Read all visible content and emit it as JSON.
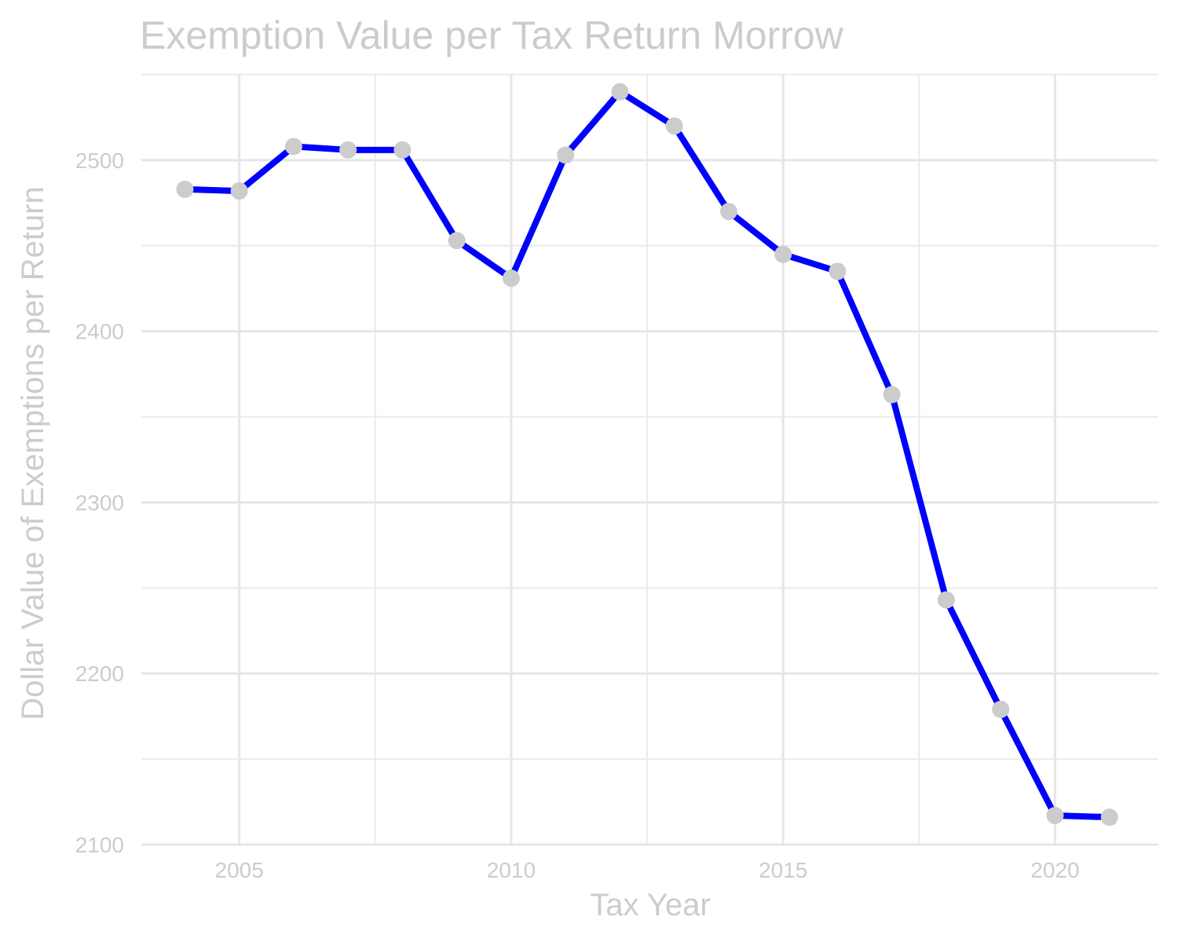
{
  "chart_data": {
    "type": "line",
    "title": "Exemption Value per Tax Return Morrow",
    "xlabel": "Tax Year",
    "ylabel": "Dollar Value of Exemptions per Return",
    "x": [
      2004,
      2005,
      2006,
      2007,
      2008,
      2009,
      2010,
      2011,
      2012,
      2013,
      2014,
      2015,
      2016,
      2017,
      2018,
      2019,
      2020,
      2021
    ],
    "series": [
      {
        "values": [
          2483,
          2482,
          2508,
          2506,
          2506,
          2453,
          2431,
          2503,
          2540,
          2520,
          2470,
          2445,
          2435,
          2363,
          2243,
          2179,
          2117,
          2116
        ]
      }
    ],
    "xlim": [
      2003.2,
      2021.9
    ],
    "ylim": [
      2100,
      2550
    ],
    "x_ticks": [
      "2005",
      "2010",
      "2015",
      "2020"
    ],
    "y_ticks": [
      "2100",
      "2200",
      "2300",
      "2400",
      "2500"
    ],
    "grid": true,
    "legend": "none",
    "line_color": "#0000ff",
    "point_color": "#cccccc",
    "text_color": "#cccccc"
  }
}
